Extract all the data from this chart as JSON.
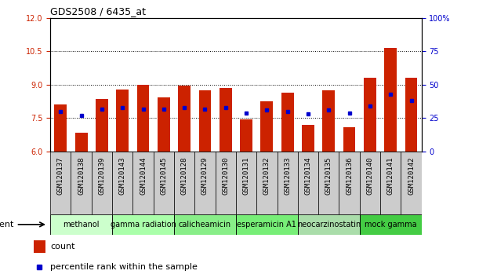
{
  "title": "GDS2508 / 6435_at",
  "samples": [
    "GSM120137",
    "GSM120138",
    "GSM120139",
    "GSM120143",
    "GSM120144",
    "GSM120145",
    "GSM120128",
    "GSM120129",
    "GSM120130",
    "GSM120131",
    "GSM120132",
    "GSM120133",
    "GSM120134",
    "GSM120135",
    "GSM120136",
    "GSM120140",
    "GSM120141",
    "GSM120142"
  ],
  "count_values": [
    8.1,
    6.85,
    8.35,
    8.8,
    9.0,
    8.45,
    8.95,
    8.75,
    8.85,
    7.45,
    8.25,
    8.65,
    7.2,
    8.75,
    7.1,
    9.3,
    10.65,
    9.3
  ],
  "percentile_values": [
    30,
    27,
    32,
    33,
    32,
    32,
    33,
    32,
    33,
    29,
    31,
    30,
    28,
    31,
    29,
    34,
    43,
    38
  ],
  "groups": [
    {
      "label": "methanol",
      "start": 0,
      "end": 3,
      "color": "#ccffcc"
    },
    {
      "label": "gamma radiation",
      "start": 3,
      "end": 6,
      "color": "#aaffaa"
    },
    {
      "label": "calicheamicin",
      "start": 6,
      "end": 9,
      "color": "#88ee88"
    },
    {
      "label": "esperamicin A1",
      "start": 9,
      "end": 12,
      "color": "#77ee77"
    },
    {
      "label": "neocarzinostatin",
      "start": 12,
      "end": 15,
      "color": "#aaddaa"
    },
    {
      "label": "mock gamma",
      "start": 15,
      "end": 18,
      "color": "#44cc44"
    }
  ],
  "ylim_left": [
    6,
    12
  ],
  "ylim_right": [
    0,
    100
  ],
  "yticks_left": [
    6,
    7.5,
    9,
    10.5,
    12
  ],
  "yticks_right": [
    0,
    25,
    50,
    75,
    100
  ],
  "bar_color": "#cc2200",
  "dot_color": "#0000cc",
  "background_color": "#ffffff",
  "plot_bg_color": "#ffffff",
  "ticklabel_bg_color": "#cccccc",
  "agent_label": "agent",
  "ylabel_left_color": "#cc2200",
  "ylabel_right_color": "#0000cc",
  "bar_width": 0.6,
  "baseline": 6,
  "hgrid_vals": [
    7.5,
    9.0,
    10.5
  ],
  "title_fontsize": 9,
  "tick_fontsize": 7,
  "group_fontsize": 7,
  "legend_fontsize": 8
}
